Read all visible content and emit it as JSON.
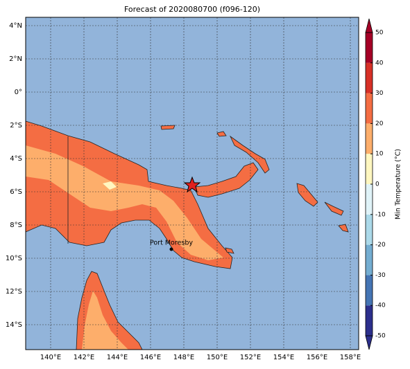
{
  "chart_data": {
    "type": "map",
    "title": "Forecast of 2020080700 (f096-120)",
    "xlim": [
      138.5,
      158.5
    ],
    "ylim": [
      -15.5,
      4.5
    ],
    "xticks": [
      {
        "value": 140,
        "label": "140°E"
      },
      {
        "value": 142,
        "label": "142°E"
      },
      {
        "value": 144,
        "label": "144°E"
      },
      {
        "value": 146,
        "label": "146°E"
      },
      {
        "value": 148,
        "label": "148°E"
      },
      {
        "value": 150,
        "label": "150°E"
      },
      {
        "value": 152,
        "label": "152°E"
      },
      {
        "value": 154,
        "label": "154°E"
      },
      {
        "value": 156,
        "label": "156°E"
      },
      {
        "value": 158,
        "label": "158°E"
      }
    ],
    "yticks": [
      {
        "value": 4,
        "label": "4°N"
      },
      {
        "value": 2,
        "label": "2°N"
      },
      {
        "value": 0,
        "label": "0°"
      },
      {
        "value": -2,
        "label": "2°S"
      },
      {
        "value": -4,
        "label": "4°S"
      },
      {
        "value": -6,
        "label": "6°S"
      },
      {
        "value": -8,
        "label": "8°S"
      },
      {
        "value": -10,
        "label": "10°S"
      },
      {
        "value": -12,
        "label": "12°S"
      },
      {
        "value": -14,
        "label": "14°S"
      }
    ],
    "grid": true,
    "place_label": "Port Moresby",
    "colorbar": {
      "label": "Min Temperature (°C)",
      "lim": [
        -50,
        50
      ],
      "ticks": [
        -50,
        -40,
        -30,
        -20,
        -10,
        0,
        10,
        20,
        30,
        40,
        50
      ],
      "colors": [
        "#2c2f8c",
        "#4575b4",
        "#74add1",
        "#abd9e9",
        "#e0f3f8",
        "#fff7c0",
        "#fdae6b",
        "#f46d43",
        "#d73027",
        "#a50026"
      ]
    }
  }
}
